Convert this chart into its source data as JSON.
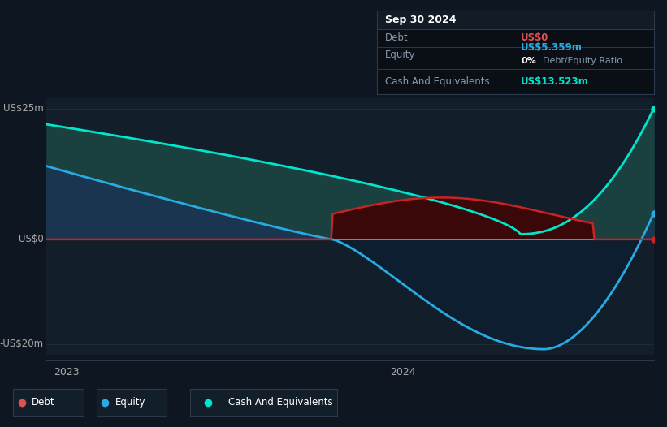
{
  "bg_color": "#0e1621",
  "chart_bg": "#131e2b",
  "title": "Sep 30 2024",
  "y_top_label": "US$25m",
  "y_zero_label": "US$0",
  "y_bottom_label": "-US$20m",
  "x_labels": [
    "2023",
    "2024"
  ],
  "equity_color": "#29abe2",
  "debt_color": "#cc2222",
  "cash_color": "#00e5cc",
  "legend_items": [
    "Debt",
    "Equity",
    "Cash And Equivalents"
  ],
  "legend_colors": [
    "#e05050",
    "#29abe2",
    "#00e5cc"
  ],
  "table_title": "Sep 30 2024",
  "table_rows": [
    {
      "label": "Debt",
      "value": "US$0",
      "value_color": "#e05050"
    },
    {
      "label": "Equity",
      "value": "US$5.359m",
      "value_color": "#29abe2"
    },
    {
      "label": "",
      "value": "0% Debt/Equity Ratio",
      "value_color": "#ffffff",
      "value_bold": "0%"
    },
    {
      "label": "Cash And Equivalents",
      "value": "US$13.523m",
      "value_color": "#00e5cc"
    }
  ],
  "ylim": [
    -22,
    27
  ],
  "cash_fill_color": "#1a4040",
  "equity_pos_fill": "#1a3550",
  "equity_neg_fill": "#0d1e30",
  "debt_fill_color": "#3a0808"
}
